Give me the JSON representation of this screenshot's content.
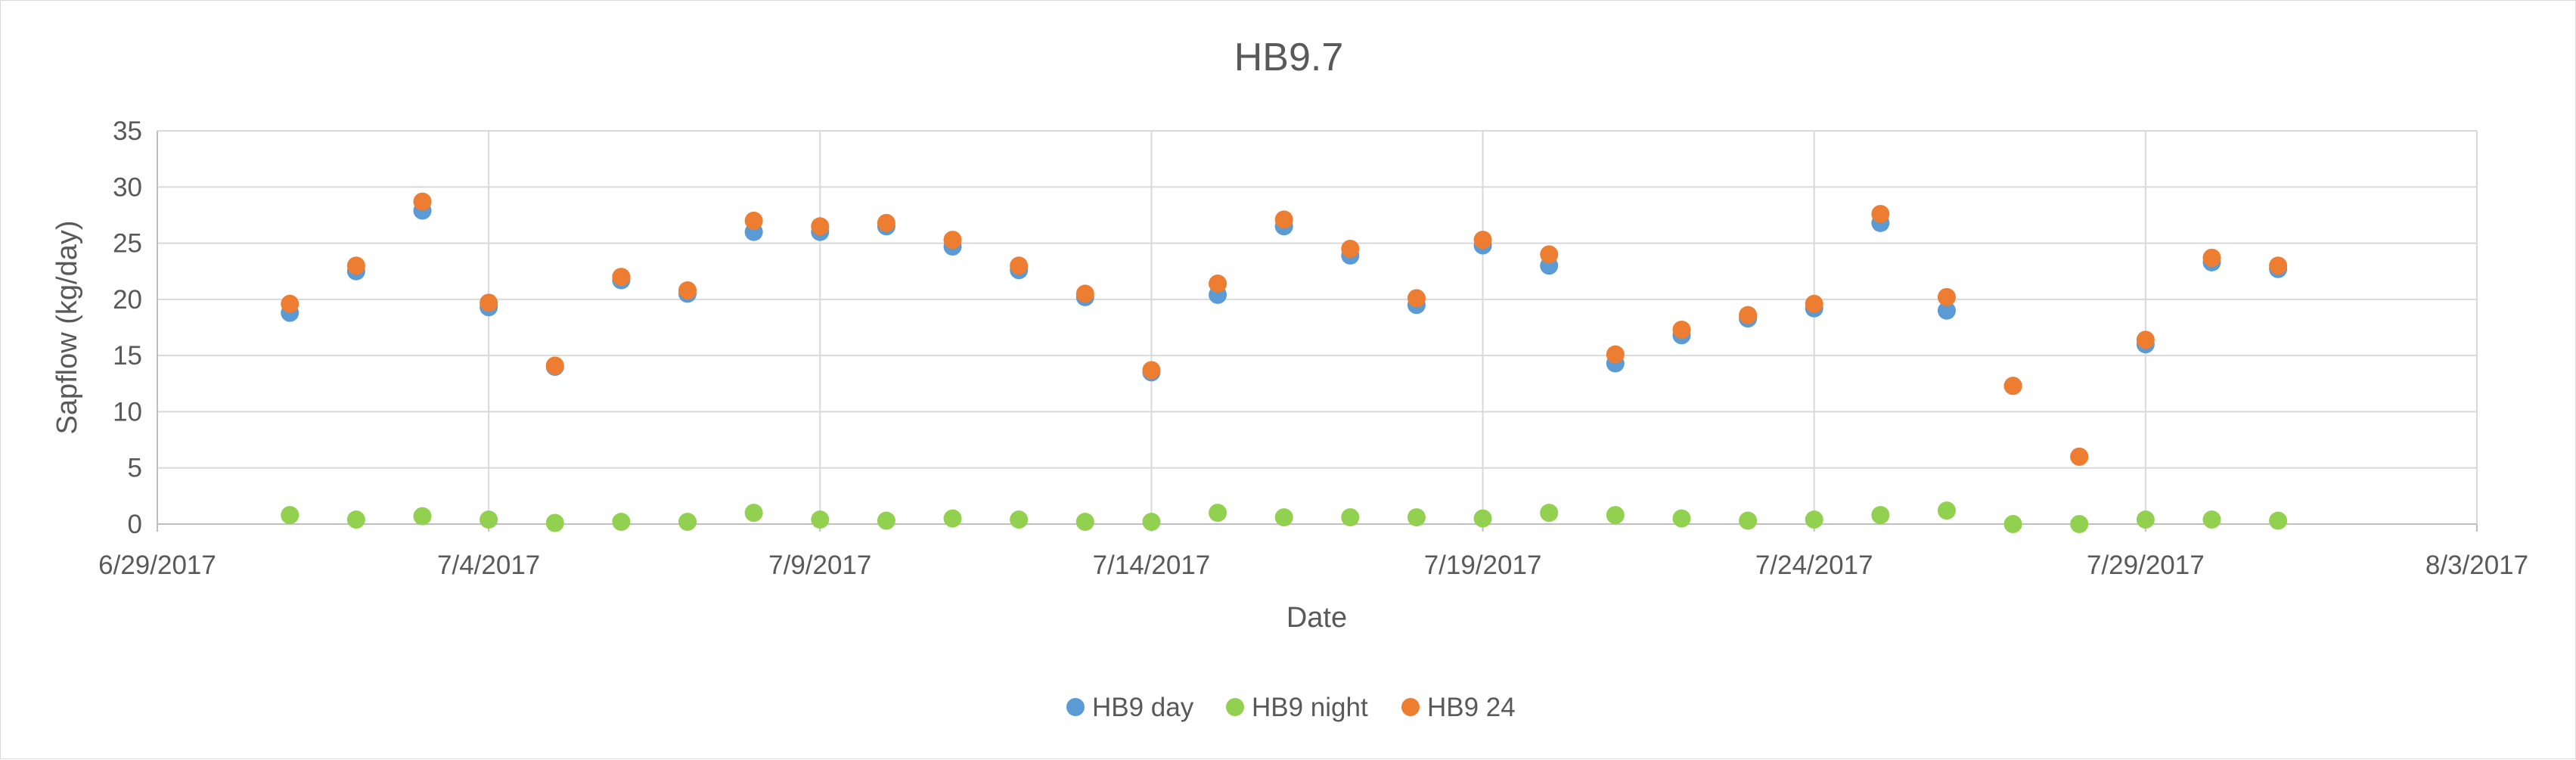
{
  "chart_data": {
    "type": "scatter",
    "title": "HB9.7",
    "xlabel": "Date",
    "ylabel": "Sapflow (kg/day)",
    "xlim": [
      "2017-06-29",
      "2017-08-03"
    ],
    "ylim": [
      0,
      35
    ],
    "x_ticks": [
      "6/29/2017",
      "7/4/2017",
      "7/9/2017",
      "7/14/2017",
      "7/19/2017",
      "7/24/2017",
      "7/29/2017",
      "8/3/2017"
    ],
    "y_ticks": [
      0,
      5,
      10,
      15,
      20,
      25,
      30,
      35
    ],
    "grid": true,
    "legend_position": "bottom",
    "x": [
      "2017-07-01",
      "2017-07-02",
      "2017-07-03",
      "2017-07-04",
      "2017-07-05",
      "2017-07-06",
      "2017-07-07",
      "2017-07-08",
      "2017-07-09",
      "2017-07-10",
      "2017-07-11",
      "2017-07-12",
      "2017-07-13",
      "2017-07-14",
      "2017-07-15",
      "2017-07-16",
      "2017-07-17",
      "2017-07-18",
      "2017-07-19",
      "2017-07-20",
      "2017-07-21",
      "2017-07-22",
      "2017-07-23",
      "2017-07-24",
      "2017-07-25",
      "2017-07-26",
      "2017-07-27",
      "2017-07-28",
      "2017-07-29",
      "2017-07-30",
      "2017-07-31"
    ],
    "series": [
      {
        "name": "HB9 day",
        "color": "#5b9bd5",
        "values": [
          18.8,
          22.5,
          27.9,
          19.3,
          14.0,
          21.7,
          20.5,
          26.0,
          26.0,
          26.5,
          24.7,
          22.6,
          20.2,
          13.5,
          20.4,
          26.5,
          23.9,
          19.5,
          24.8,
          23.0,
          14.3,
          16.8,
          18.3,
          19.2,
          26.8,
          19.0,
          12.3,
          6.0,
          16.0,
          23.3,
          22.7
        ]
      },
      {
        "name": "HB9 night",
        "color": "#92d050",
        "values": [
          0.8,
          0.4,
          0.7,
          0.4,
          0.1,
          0.2,
          0.2,
          1.0,
          0.4,
          0.3,
          0.5,
          0.4,
          0.2,
          0.2,
          1.0,
          0.6,
          0.6,
          0.6,
          0.5,
          1.0,
          0.8,
          0.5,
          0.3,
          0.4,
          0.8,
          1.2,
          0.0,
          0.0,
          0.4,
          0.4,
          0.3
        ]
      },
      {
        "name": "HB9 24",
        "color": "#ed7d31",
        "values": [
          19.6,
          23.0,
          28.7,
          19.7,
          14.1,
          22.0,
          20.8,
          27.0,
          26.5,
          26.8,
          25.3,
          23.0,
          20.5,
          13.7,
          21.4,
          27.1,
          24.5,
          20.1,
          25.3,
          24.0,
          15.1,
          17.3,
          18.6,
          19.6,
          27.6,
          20.2,
          12.3,
          6.0,
          16.4,
          23.7,
          23.0
        ]
      }
    ]
  }
}
